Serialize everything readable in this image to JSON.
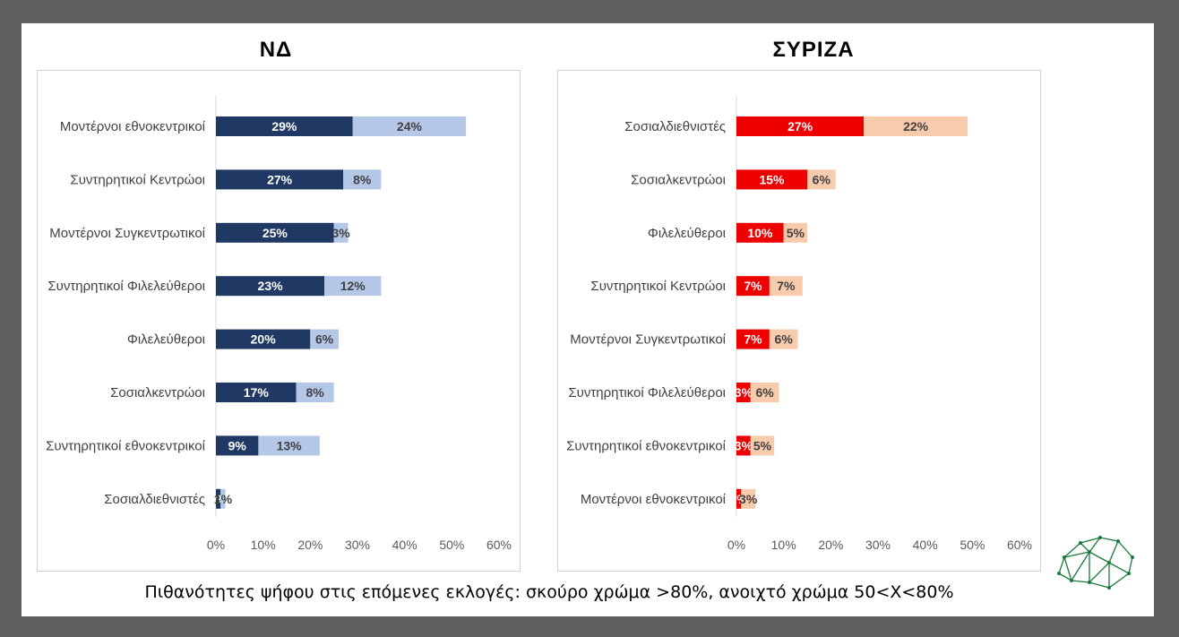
{
  "caption": "Πιθανότητες ψήφου στις επόμενες εκλογές: σκούρο χρώμα >80%, ανοιχτό χρώμα 50<Χ<80%",
  "colors": {
    "nd_dark": "#1f3864",
    "nd_light": "#b4c7e7",
    "syriza_dark": "#ee0000",
    "syriza_light": "#f8cbad"
  },
  "chart_data": [
    {
      "type": "bar",
      "orientation": "horizontal",
      "stacked": true,
      "title": "ΝΔ",
      "categories": [
        "Μοντέρνοι εθνοκεντρικοί",
        "Συντηρητικοί Κεντρώοι",
        "Μοντέρνοι Συγκεντρωτικοί",
        "Συντηρητικοί Φιλελεύθεροι",
        "Φιλελεύθεροι",
        "Σοσιαλκεντρώοι",
        "Συντηρητικοί εθνοκεντρικοί",
        "Σοσιαλδιεθνιστές"
      ],
      "series": [
        {
          "values": [
            29,
            27,
            25,
            23,
            20,
            17,
            9,
            1
          ],
          "labels": [
            "29%",
            "27%",
            "25%",
            "23%",
            "20%",
            "17%",
            "9%",
            "1%"
          ],
          "color": "#1f3864"
        },
        {
          "values": [
            24,
            8,
            3,
            12,
            6,
            8,
            13,
            1
          ],
          "labels": [
            "24%",
            "8%",
            "3%",
            "12%",
            "6%",
            "8%",
            "13%",
            "1%"
          ],
          "color": "#b4c7e7"
        }
      ],
      "xlim": [
        0,
        60
      ],
      "xticks": [
        "0%",
        "10%",
        "20%",
        "30%",
        "40%",
        "50%",
        "60%"
      ],
      "grid": false
    },
    {
      "type": "bar",
      "orientation": "horizontal",
      "stacked": true,
      "title": "ΣΥΡΙΖΑ",
      "categories": [
        "Σοσιαλδιεθνιστές",
        "Σοσιαλκεντρώοι",
        "Φιλελεύθεροι",
        "Συντηρητικοί Κεντρώοι",
        "Μοντέρνοι Συγκεντρωτικοί",
        "Συντηρητικοί Φιλελεύθεροι",
        "Συντηρητικοί εθνοκεντρικοί",
        "Μοντέρνοι εθνοκεντρικοί"
      ],
      "series": [
        {
          "values": [
            27,
            15,
            10,
            7,
            7,
            3,
            3,
            1
          ],
          "labels": [
            "27%",
            "15%",
            "10%",
            "7%",
            "7%",
            "3%",
            "3%",
            "1%"
          ],
          "color": "#ee0000"
        },
        {
          "values": [
            22,
            6,
            5,
            7,
            6,
            6,
            5,
            3
          ],
          "labels": [
            "22%",
            "6%",
            "5%",
            "7%",
            "6%",
            "6%",
            "5%",
            "3%"
          ],
          "color": "#f8cbad"
        }
      ],
      "xlim": [
        0,
        60
      ],
      "xticks": [
        "0%",
        "10%",
        "20%",
        "30%",
        "40%",
        "50%",
        "60%"
      ],
      "grid": false
    }
  ]
}
